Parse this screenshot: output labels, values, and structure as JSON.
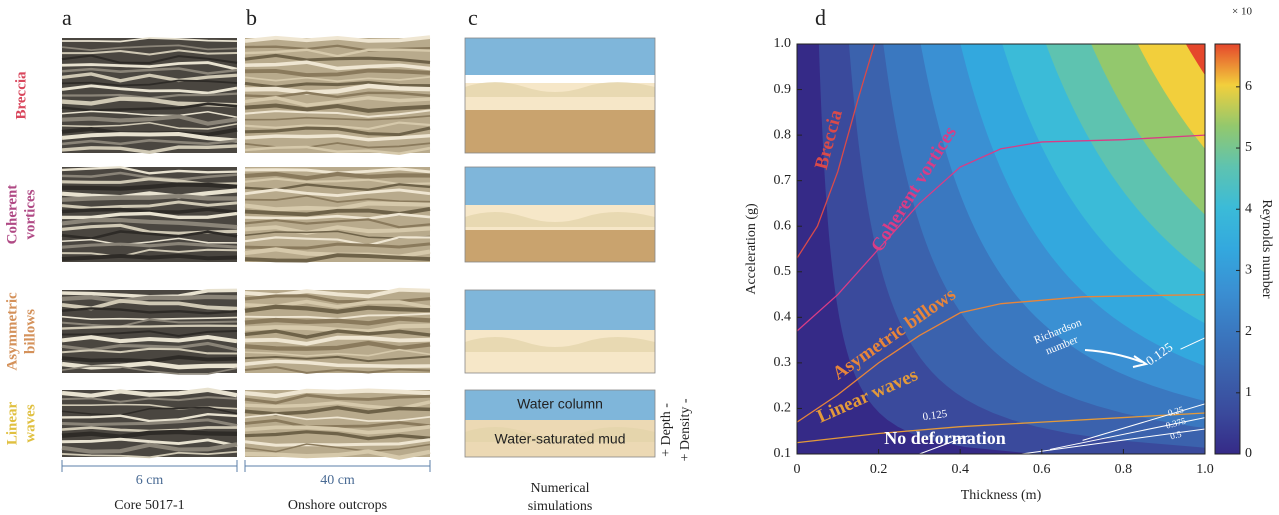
{
  "panel_labels": [
    "a",
    "b",
    "c",
    "d"
  ],
  "rows": [
    {
      "lines": [
        "Breccia"
      ],
      "color": "#d9475d"
    },
    {
      "lines": [
        "Coherent",
        "vortices"
      ],
      "color": "#b04a85"
    },
    {
      "lines": [
        "Asymmetric",
        "billows"
      ],
      "color": "#d4915a"
    },
    {
      "lines": [
        "Linear",
        "waves"
      ],
      "color": "#e0c040"
    }
  ],
  "scales": [
    {
      "length": "6 cm",
      "caption": [
        "Core 5017-1"
      ]
    },
    {
      "length": "40 cm",
      "caption": [
        "Onshore outcrops"
      ]
    },
    {
      "caption": [
        "Numerical",
        "simulations"
      ]
    }
  ],
  "schematic": {
    "water": "Water column",
    "mud": "Water-saturated mud",
    "depth": "+ Depth -",
    "density": "+ Density -"
  },
  "chart_data": {
    "type": "contour",
    "x_label": "Thickness (m)",
    "y_label": "Acceleration (g)",
    "colorbar_label": "Reynolds number",
    "colorbar_multiplier": "× 10",
    "xlim": [
      0,
      1
    ],
    "xticks": [
      0,
      0.2,
      0.4,
      0.6,
      0.8,
      {
        "value": 1,
        "label": "1.0"
      }
    ],
    "ylim": [
      0.1,
      1
    ],
    "yticks": [
      0.1,
      0.2,
      0.3,
      0.4,
      0.5,
      0.6,
      0.7,
      0.8,
      0.9,
      {
        "value": 1,
        "label": "1.0"
      }
    ],
    "clim": [
      0,
      6.7
    ],
    "cticks": [
      0,
      1,
      2,
      3,
      4,
      5,
      6
    ],
    "colormap": [
      "#352a87",
      "#3a4a9c",
      "#3b62ad",
      "#3a78c0",
      "#3a90d3",
      "#33a8de",
      "#3bbbd8",
      "#5ec3b0",
      "#93c86d",
      "#f2cf3c",
      "#e5472c"
    ],
    "series": [
      {
        "name": "Breccia",
        "color": "#d94a4a",
        "x": [
          0,
          0.05,
          0.1,
          0.15,
          0.19
        ],
        "y": [
          0.53,
          0.6,
          0.72,
          0.88,
          1.0
        ]
      },
      {
        "name": "Coherent vortices",
        "color": "#d93c86",
        "x": [
          0,
          0.1,
          0.2,
          0.3,
          0.4,
          0.5,
          0.6,
          0.8,
          1.0
        ],
        "y": [
          0.37,
          0.45,
          0.55,
          0.65,
          0.73,
          0.77,
          0.785,
          0.79,
          0.8
        ]
      },
      {
        "name": "Asymetric billows",
        "color": "#e8853a",
        "x": [
          0,
          0.1,
          0.2,
          0.3,
          0.4,
          0.5,
          0.7,
          1.0
        ],
        "y": [
          0.17,
          0.23,
          0.3,
          0.36,
          0.41,
          0.43,
          0.445,
          0.45
        ]
      },
      {
        "name": "Linear waves",
        "color": "#e39a3a",
        "x": [
          0,
          0.2,
          0.4,
          0.6,
          0.8,
          1.0
        ],
        "y": [
          0.125,
          0.145,
          0.16,
          0.17,
          0.18,
          0.19
        ]
      }
    ],
    "richardson": {
      "label": [
        "Richardson",
        "number"
      ],
      "contours": [
        {
          "value": 0.125,
          "x": [
            0.94,
            1.0
          ],
          "y": [
            0.33,
            0.355
          ]
        },
        {
          "value": 0.125,
          "x": [
            0.3,
            0.42
          ],
          "y": [
            0.1,
            0.14
          ]
        },
        {
          "value": 0.25,
          "x": [
            0.7,
            1.0
          ],
          "y": [
            0.13,
            0.21
          ]
        },
        {
          "value": 0.375,
          "x": [
            0.62,
            1.0
          ],
          "y": [
            0.11,
            0.18
          ]
        },
        {
          "value": 0.5,
          "x": [
            0.55,
            1.0
          ],
          "y": [
            0.1,
            0.155
          ]
        }
      ]
    },
    "annotation": "No deformation"
  }
}
